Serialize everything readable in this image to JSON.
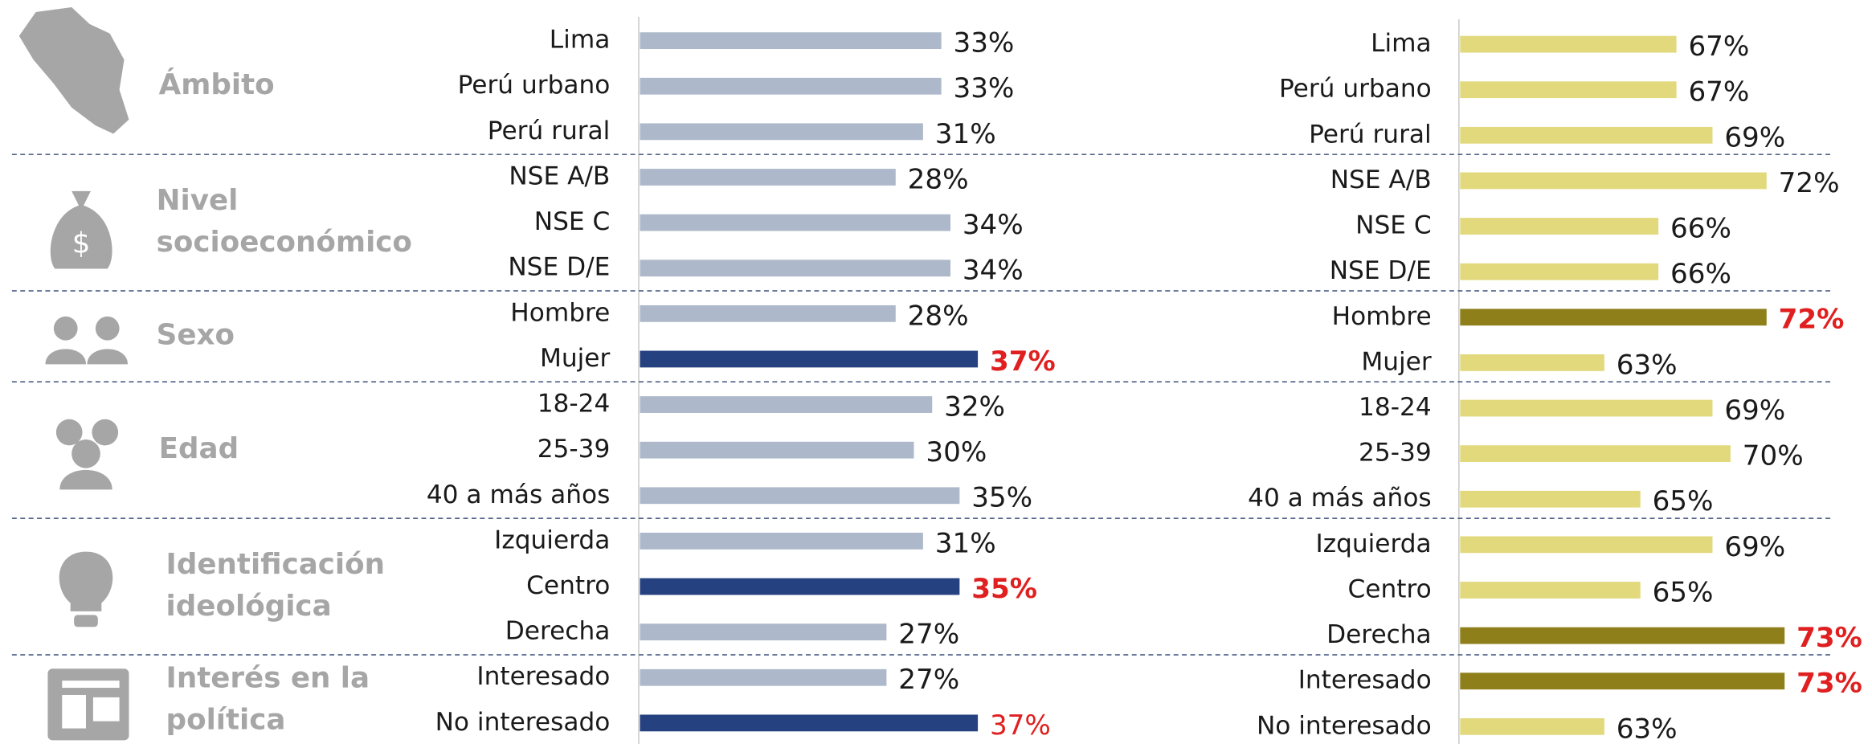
{
  "groups": [
    {
      "label": [
        "Ámbito"
      ],
      "rows": 3
    },
    {
      "label": [
        "Nivel",
        "socioeconómico"
      ],
      "rows": 3
    },
    {
      "label": [
        "Sexo"
      ],
      "rows": 2
    },
    {
      "label": [
        "Edad"
      ],
      "rows": 3
    },
    {
      "label": [
        "Identificación",
        "ideológica"
      ],
      "rows": 3
    },
    {
      "label": [
        "Interés en la",
        "política"
      ],
      "rows": 2
    }
  ],
  "chart_data": [
    {
      "type": "bar",
      "orientation": "horizontal",
      "categories": [
        "Lima",
        "Perú urbano",
        "Perú rural",
        "NSE A/B",
        "NSE C",
        "NSE D/E",
        "Hombre",
        "Mujer",
        "18-24",
        "25-39",
        "40 a más años",
        "Izquierda",
        "Centro",
        "Derecha",
        "Interesado",
        "No interesado"
      ],
      "values": [
        33,
        33,
        31,
        28,
        34,
        34,
        28,
        37,
        32,
        30,
        35,
        31,
        35,
        27,
        27,
        37
      ],
      "value_labels": [
        "33%",
        "33%",
        "31%",
        "28%",
        "34%",
        "34%",
        "28%",
        "37%",
        "32%",
        "30%",
        "35%",
        "31%",
        "35%",
        "27%",
        "27%",
        "37%"
      ],
      "colors": [
        "#adb9ca",
        "#adb9ca",
        "#adb9ca",
        "#adb9ca",
        "#adb9ca",
        "#adb9ca",
        "#adb9ca",
        "#264180",
        "#adb9ca",
        "#adb9ca",
        "#adb9ca",
        "#adb9ca",
        "#264180",
        "#adb9ca",
        "#adb9ca",
        "#264180"
      ],
      "label_colors": [
        "#1a1a1a",
        "#1a1a1a",
        "#1a1a1a",
        "#1a1a1a",
        "#1a1a1a",
        "#1a1a1a",
        "#1a1a1a",
        "#e02020",
        "#1a1a1a",
        "#1a1a1a",
        "#1a1a1a",
        "#1a1a1a",
        "#e02020",
        "#1a1a1a",
        "#1a1a1a",
        "#e02020"
      ],
      "label_bold": [
        false,
        false,
        false,
        false,
        false,
        false,
        false,
        true,
        false,
        false,
        false,
        false,
        true,
        false,
        false,
        false
      ],
      "xlim": [
        0,
        40
      ]
    },
    {
      "type": "bar",
      "orientation": "horizontal",
      "categories": [
        "Lima",
        "Perú urbano",
        "Perú rural",
        "NSE A/B",
        "NSE C",
        "NSE D/E",
        "Hombre",
        "Mujer",
        "18-24",
        "25-39",
        "40 a más años",
        "Izquierda",
        "Centro",
        "Derecha",
        "Interesado",
        "No interesado"
      ],
      "values": [
        67,
        67,
        69,
        72,
        66,
        66,
        72,
        63,
        69,
        70,
        65,
        69,
        65,
        73,
        73,
        63
      ],
      "value_labels": [
        "67%",
        "67%",
        "69%",
        "72%",
        "66%",
        "66%",
        "72%",
        "63%",
        "69%",
        "70%",
        "65%",
        "69%",
        "65%",
        "73%",
        "73%",
        "63%"
      ],
      "colors": [
        "#e2d97d",
        "#e2d97d",
        "#e2d97d",
        "#e2d97d",
        "#e2d97d",
        "#e2d97d",
        "#8e7f1a",
        "#e2d97d",
        "#e2d97d",
        "#e2d97d",
        "#e2d97d",
        "#e2d97d",
        "#e2d97d",
        "#8e7f1a",
        "#8e7f1a",
        "#e2d97d"
      ],
      "label_colors": [
        "#1a1a1a",
        "#1a1a1a",
        "#1a1a1a",
        "#1a1a1a",
        "#1a1a1a",
        "#1a1a1a",
        "#e02020",
        "#1a1a1a",
        "#1a1a1a",
        "#1a1a1a",
        "#1a1a1a",
        "#1a1a1a",
        "#1a1a1a",
        "#e02020",
        "#e02020",
        "#1a1a1a"
      ],
      "label_bold": [
        false,
        false,
        false,
        false,
        false,
        false,
        true,
        false,
        false,
        false,
        false,
        false,
        false,
        true,
        true,
        false
      ],
      "xlim": [
        55,
        75
      ]
    }
  ]
}
